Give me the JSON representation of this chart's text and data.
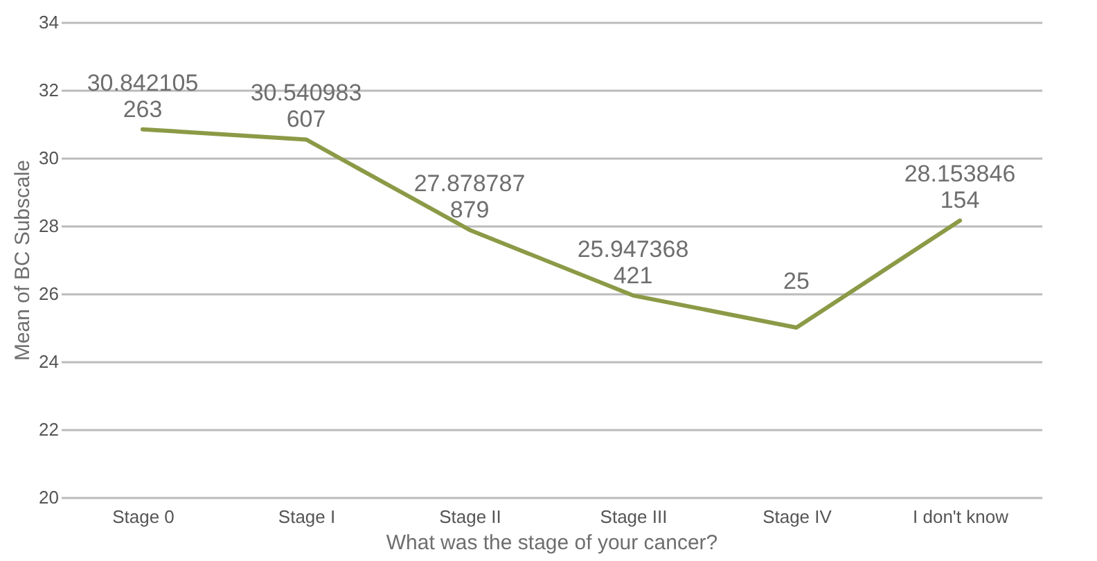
{
  "chart_data": {
    "type": "line",
    "xlabel": "What was the stage of your cancer?",
    "ylabel": "Mean of BC Subscale",
    "categories": [
      "Stage 0",
      "Stage I",
      "Stage II",
      "Stage III",
      "Stage IV",
      "I don't know"
    ],
    "series": [
      {
        "color": "#8b9a46",
        "values": [
          30.842105263,
          30.540983607,
          27.878787879,
          25.947368421,
          25,
          28.153846154
        ]
      }
    ],
    "ylim": [
      20,
      34
    ],
    "yticks": [
      20,
      22,
      24,
      26,
      28,
      30,
      32,
      34
    ],
    "grid": "y",
    "data_labels": true,
    "marker": "none",
    "line_style": "solid"
  }
}
